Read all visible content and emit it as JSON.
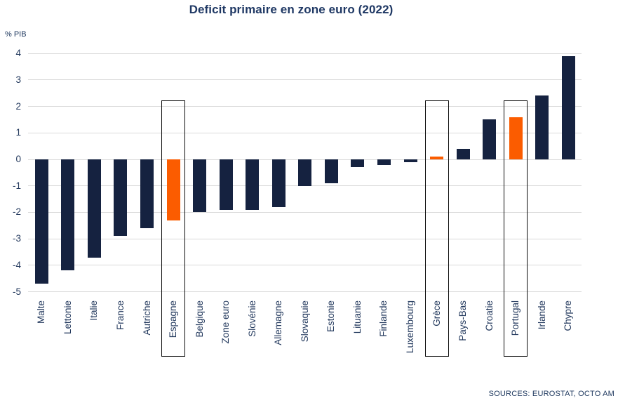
{
  "title": "Deficit primaire en zone euro (2022)",
  "y_axis_unit": "% PIB",
  "source_note": "SOURCES: EUROSTAT, OCTO AM",
  "colors": {
    "bar_navy": "#152240",
    "bar_highlight_orange": "#FB5C00",
    "gridline": "#D9D9D9",
    "axis_text": "#243A5E",
    "title_text": "#1F3864",
    "highlight_box_border": "#0b0b0b"
  },
  "chart_data": {
    "type": "bar",
    "title": "Deficit primaire en zone euro (2022)",
    "ylabel": "% PIB",
    "ylim": [
      -5,
      4
    ],
    "ytick_step": 1,
    "yticks": [
      4,
      3,
      2,
      1,
      0,
      -1,
      -2,
      -3,
      -4,
      -5
    ],
    "grid": true,
    "legend": false,
    "categories": [
      "Malte",
      "Lettonie",
      "Italie",
      "France",
      "Autriche",
      "Espagne",
      "Belgique",
      "Zone euro",
      "Slovénie",
      "Allemagne",
      "Slovaquie",
      "Estonie",
      "Lituanie",
      "Finlande",
      "Luxembourg",
      "Grèce",
      "Pays-Bas",
      "Croatie",
      "Portugal",
      "Irlande",
      "Chypre"
    ],
    "values": [
      -4.7,
      -4.2,
      -3.7,
      -2.9,
      -2.6,
      -2.3,
      -2.0,
      -1.9,
      -1.9,
      -1.8,
      -1.0,
      -0.9,
      -0.3,
      -0.2,
      -0.1,
      0.1,
      0.4,
      1.5,
      1.6,
      2.4,
      3.9
    ],
    "highlighted_categories": [
      "Espagne",
      "Grèce",
      "Portugal"
    ],
    "bar_color": "#152240",
    "highlight_color": "#FB5C00"
  }
}
